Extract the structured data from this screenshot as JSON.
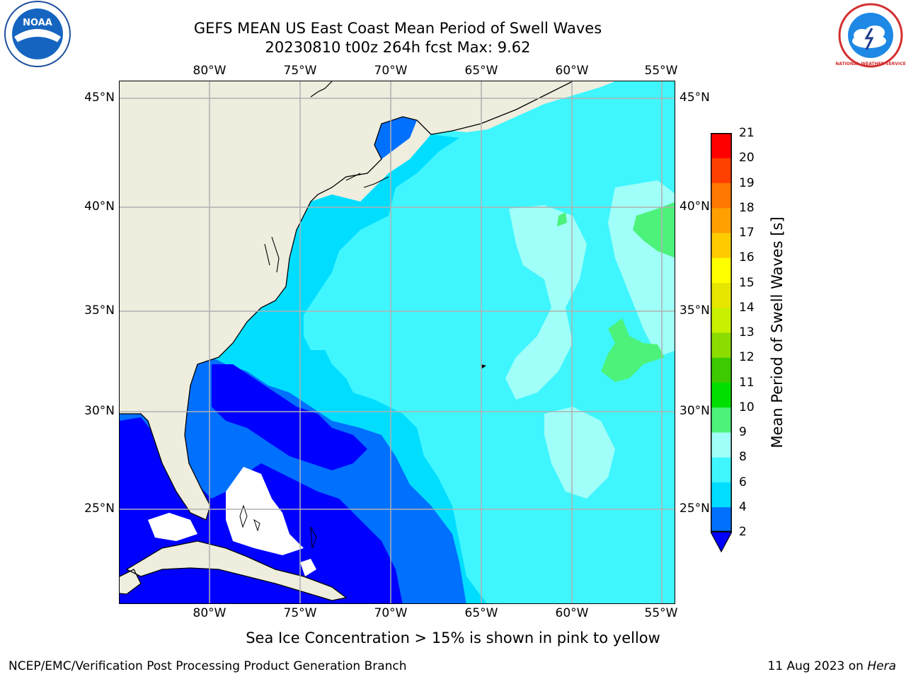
{
  "title": {
    "line1": "GEFS MEAN US East Coast Mean Period of Swell Waves",
    "line2": "20230810 t00z 264h fcst   Max: 9.62"
  },
  "logos": {
    "left": "noaa-logo",
    "left_text": "NOAA",
    "right": "nws-logo",
    "right_text": "NATIONAL WEATHER SERVICE"
  },
  "map": {
    "lon_labels": [
      "80°W",
      "75°W",
      "70°W",
      "65°W",
      "60°W",
      "55°W"
    ],
    "lat_labels": [
      "45°N",
      "40°N",
      "35°N",
      "30°N",
      "25°N"
    ],
    "land_color": "#eeedde",
    "grid_color": "#b0b0b0"
  },
  "colorbar": {
    "title": "Mean Period of Swell Waves [s]",
    "levels": [
      "2",
      "4",
      "6",
      "8",
      "9",
      "10",
      "11",
      "12",
      "13",
      "14",
      "15",
      "16",
      "17",
      "18",
      "19",
      "20",
      "21"
    ],
    "colors": [
      "#0000ff",
      "#0070ff",
      "#00ddff",
      "#3ff6ff",
      "#a0fff8",
      "#4cf27a",
      "#00e000",
      "#3dca00",
      "#8cdc00",
      "#c8f000",
      "#e6e600",
      "#ffff00",
      "#ffcc00",
      "#ffa000",
      "#ff7800",
      "#ff4000",
      "#ff0000"
    ],
    "under_color": "#0000ff"
  },
  "footnote": "Sea Ice Concentration > 15% is shown in pink to yellow",
  "credits": {
    "left": "NCEP/EMC/Verification Post Processing Product Generation Branch",
    "right_date": "11 Aug 2023 on ",
    "right_host": "Hera"
  }
}
